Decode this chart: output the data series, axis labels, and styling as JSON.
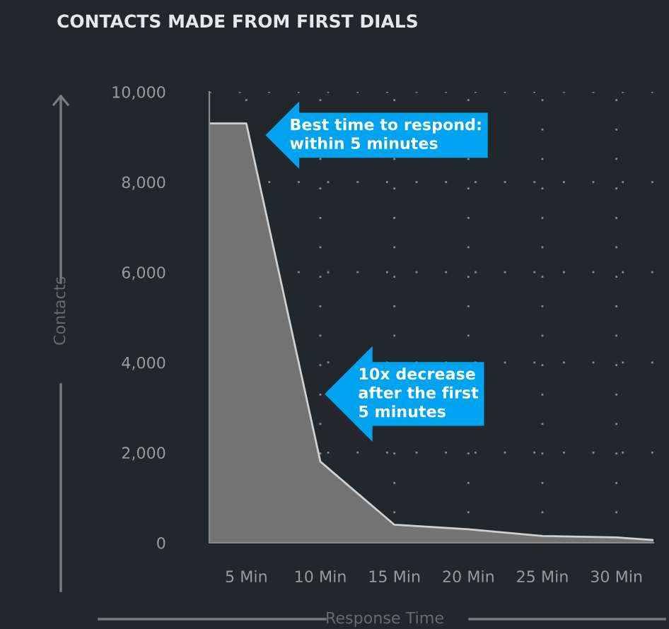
{
  "chart_data": {
    "type": "area",
    "title": "CONTACTS MADE FROM FIRST DIALS",
    "xlabel": "Response Time",
    "ylabel": "Contacts",
    "x": [
      2.5,
      5,
      10,
      15,
      20,
      25,
      30,
      32.5
    ],
    "series": [
      {
        "color": "#737373",
        "values": [
          9300,
          9300,
          1800,
          400,
          300,
          150,
          120,
          60
        ]
      }
    ],
    "xlim": [
      2.5,
      32.5
    ],
    "xticks": [
      {
        "value": 5,
        "label": "5 Min"
      },
      {
        "value": 10,
        "label": "10 Min"
      },
      {
        "value": 15,
        "label": "15 Min"
      },
      {
        "value": 20,
        "label": "20 Min"
      },
      {
        "value": 25,
        "label": "25 Min"
      },
      {
        "value": 30,
        "label": "30 Min"
      }
    ],
    "ylim": [
      0,
      10000
    ],
    "yticks": [
      {
        "value": 0,
        "label": "0"
      },
      {
        "value": 2000,
        "label": "2,000"
      },
      {
        "value": 4000,
        "label": "4,000"
      },
      {
        "value": 6000,
        "label": "6,000"
      },
      {
        "value": 8000,
        "label": "8,000"
      },
      {
        "value": 10000,
        "label": "10,000"
      }
    ],
    "grid": true,
    "line_style": "solid",
    "annotations": [
      {
        "text": "Best time to respond:\nwithin 5 minutes",
        "x": 5,
        "y": 9300
      },
      "10x decrease\nafter the first\n5 minutes"
    ]
  }
}
